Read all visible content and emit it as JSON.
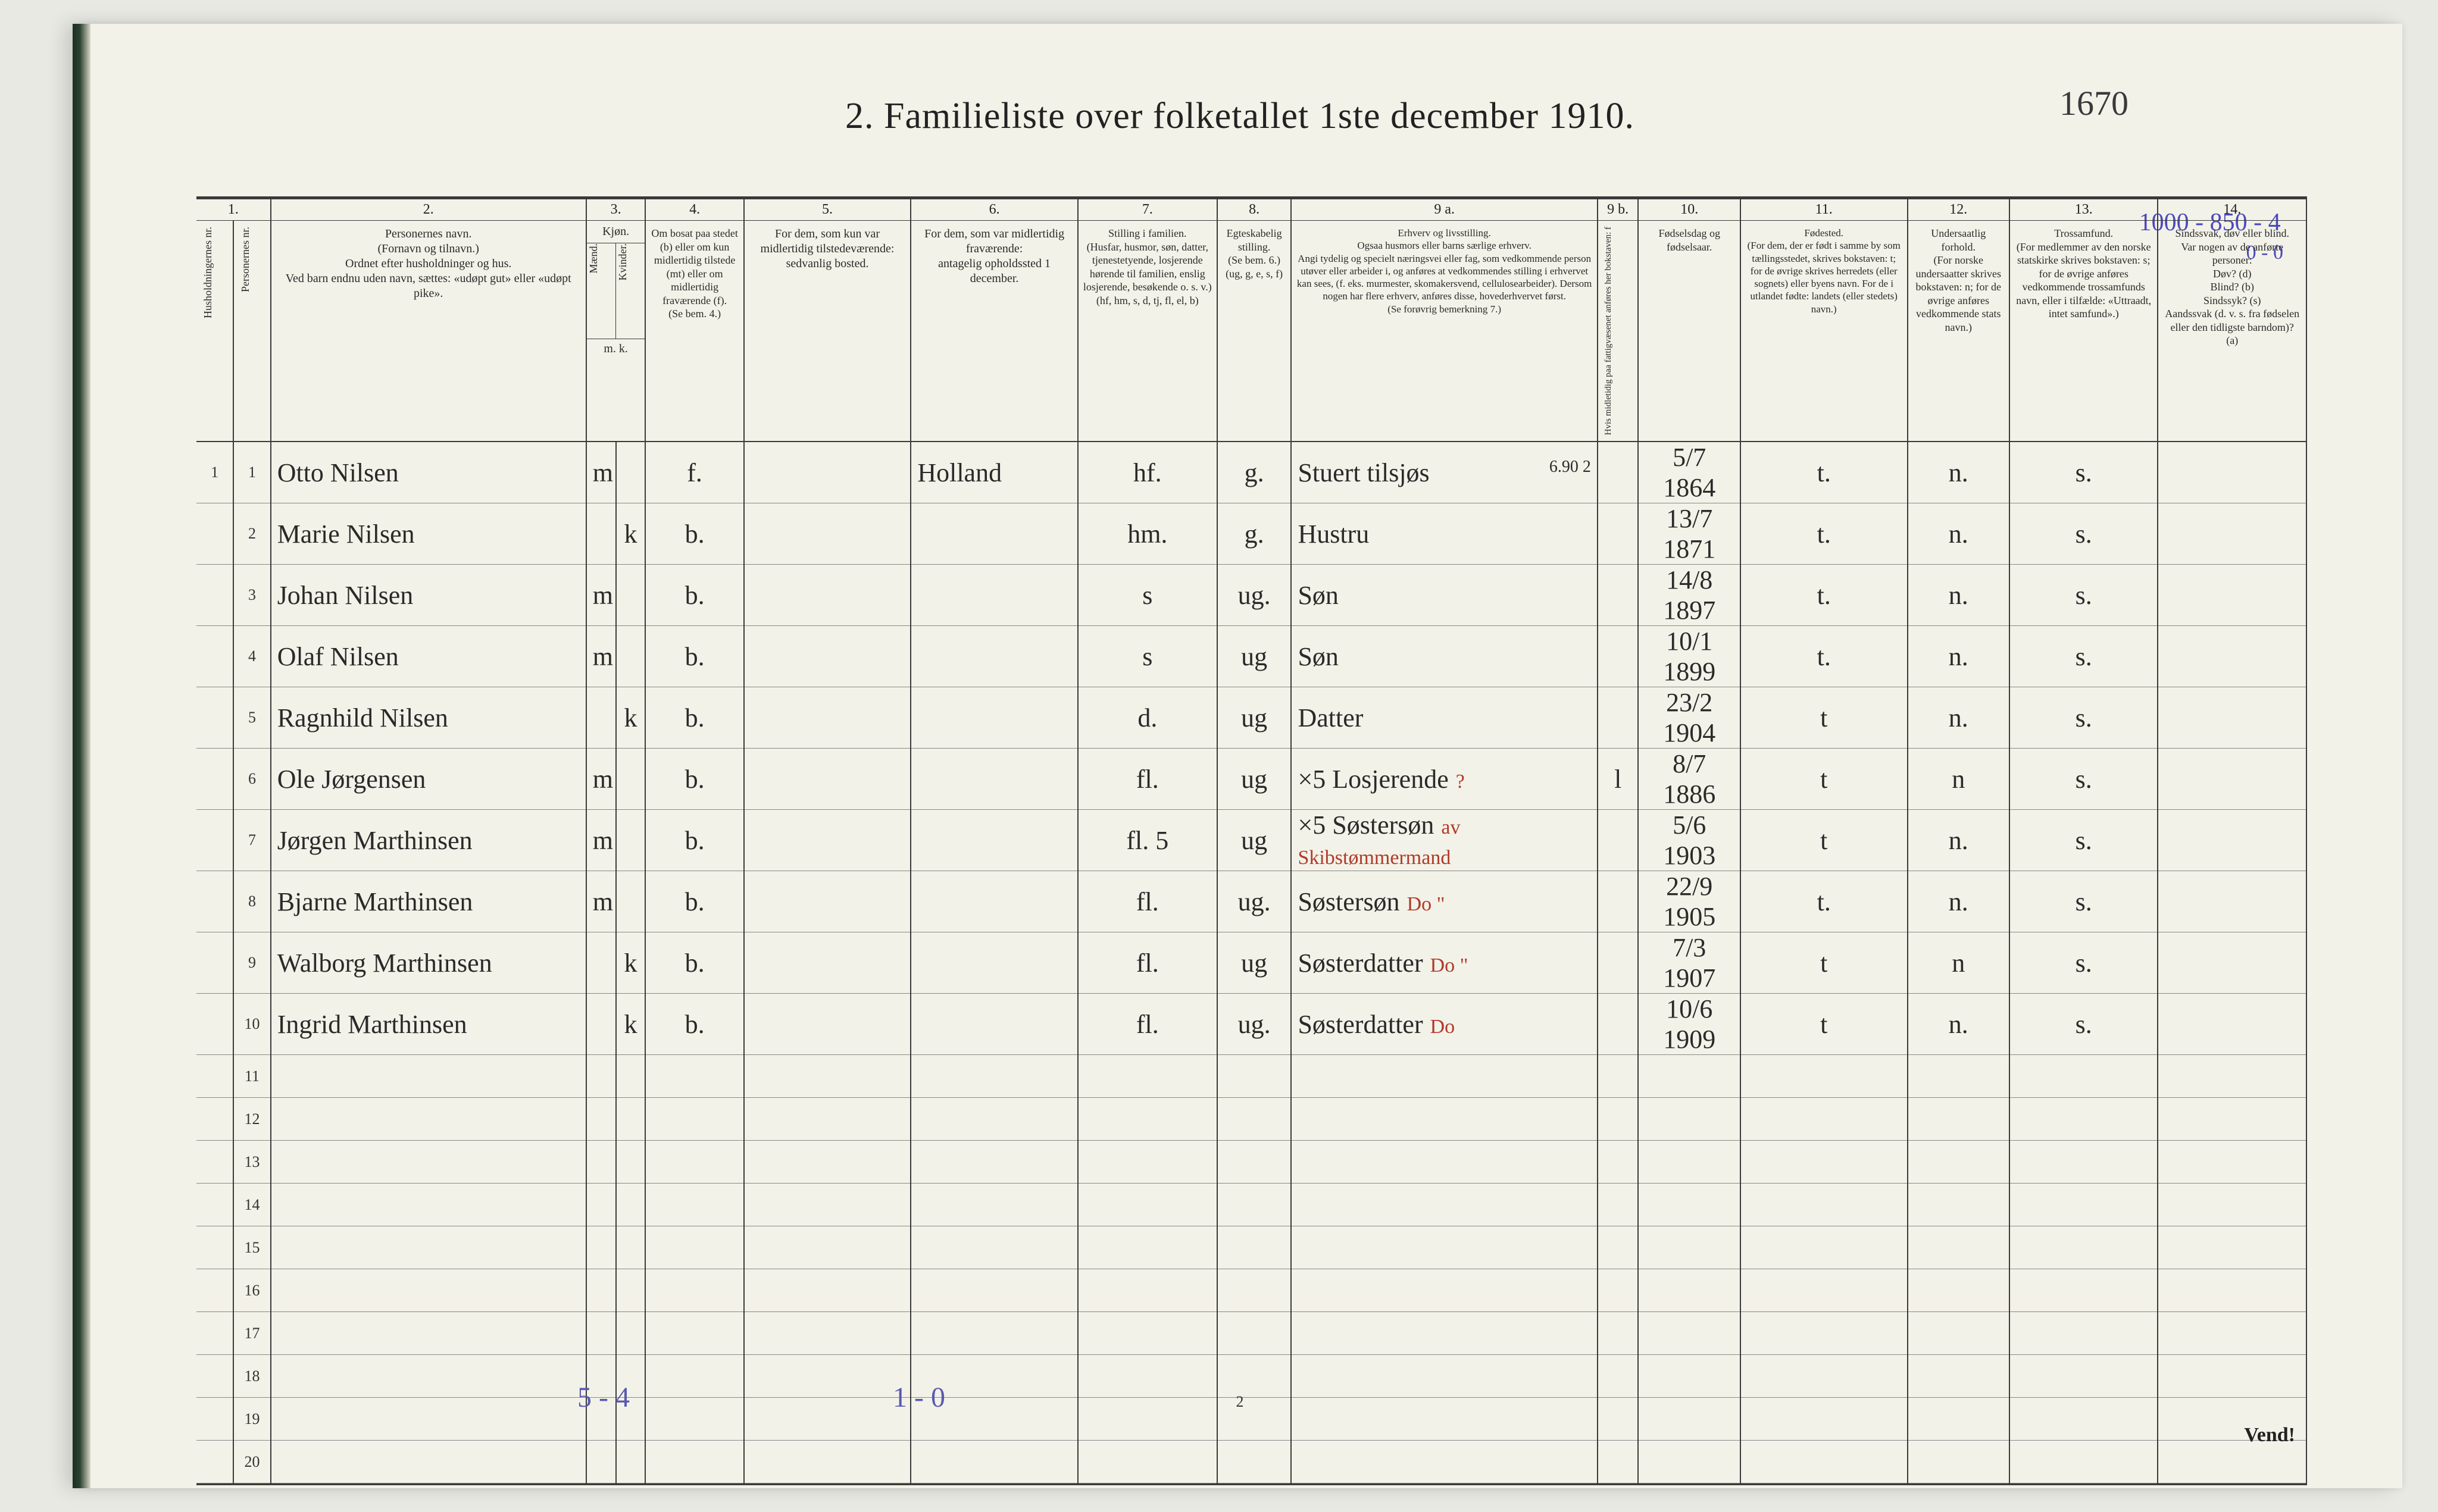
{
  "title": "2.   Familieliste over folketallet 1ste december 1910.",
  "handwritten_page_no": "1670",
  "top_margin_note": "1000 - 850 - 4",
  "top_margin_note2": "0 - 0",
  "footer_blue_left": "5 - 4",
  "footer_blue_mid": "1 - 0",
  "footer_print": "2",
  "vend": "Vend!",
  "col_nums": [
    "1.",
    "2.",
    "3.",
    "4.",
    "5.",
    "6.",
    "7.",
    "8.",
    "9 a.",
    "9 b.",
    "10.",
    "11.",
    "12.",
    "13.",
    "14."
  ],
  "headers": {
    "c1a": "Husholdningernes nr.",
    "c1b": "Personernes nr.",
    "c2": "Personernes navn.\n(Fornavn og tilnavn.)\nOrdnet efter husholdninger og hus.\nVed barn endnu uden navn, sættes: «udøpt gut» eller «udøpt pike».",
    "c3": "Kjøn.",
    "c3a": "Mænd.",
    "c3b": "Kvinder.",
    "c3foot": "m.  k.",
    "c4": "Om bosat paa stedet (b) eller om kun midlertidig tilstede (mt) eller om midlertidig fraværende (f).\n(Se bem. 4.)",
    "c5": "For dem, som kun var midlertidig tilstedeværende:\nsedvanlig bosted.",
    "c6": "For dem, som var midlertidig fraværende:\nantagelig opholdssted 1 december.",
    "c7": "Stilling i familien.\n(Husfar, husmor, søn, datter, tjenestetyende, losjerende hørende til familien, enslig losjerende, besøkende o. s. v.)\n(hf, hm, s, d, tj, fl, el, b)",
    "c8": "Egteskabelig stilling.\n(Se bem. 6.)\n(ug, g, e, s, f)",
    "c9a": "Erhverv og livsstilling.\nOgsaa husmors eller barns særlige erhverv.\nAngi tydelig og specielt næringsvei eller fag, som vedkommende person utøver eller arbeider i, og anføres at vedkommendes stilling i erhvervet kan sees, (f. eks. murmester, skomakersvend, cellulosearbeider). Dersom nogen har flere erhverv, anføres disse, hovederhvervet først.\n(Se forøvrig bemerkning 7.)",
    "c9b": "Hvis midletidig paa fattigvæsenet anføres her bokstaven: f",
    "c10": "Fødselsdag og fødselsaar.",
    "c11": "Fødested.\n(For dem, der er født i samme by som tællingsstedet, skrives bokstaven: t; for de øvrige skrives herredets (eller sognets) eller byens navn. For de i utlandet fødte: landets (eller stedets) navn.)",
    "c12": "Undersaatlig forhold.\n(For norske undersaatter skrives bokstaven: n; for de øvrige anføres vedkommende stats navn.)",
    "c13": "Trossamfund.\n(For medlemmer av den norske statskirke skrives bokstaven: s; for de øvrige anføres vedkommende trossamfunds navn, eller i tilfælde: «Uttraadt, intet samfund».)",
    "c14": "Sindssvak, døv eller blind.\nVar nogen av de anførte personer:\nDøv? (d)\nBlind? (b)\nSindssyk? (s)\nAandssvak (d. v. s. fra fødselen eller den tidligste barndom)? (a)"
  },
  "rows": [
    {
      "hh": "1",
      "pn": "1",
      "name": "Otto Nilsen",
      "sex_m": "m",
      "sex_k": "",
      "res": "f.",
      "c5": "",
      "c6": "Holland",
      "c7": "hf.",
      "c8": "g.",
      "c9": "Stuert tilsjøs",
      "c9note": "6.90 2",
      "c9b": "",
      "c10": "5/7 1864",
      "c11": "t.",
      "c12": "n.",
      "c13": "s.",
      "c14": ""
    },
    {
      "hh": "",
      "pn": "2",
      "name": "Marie Nilsen",
      "sex_m": "",
      "sex_k": "k",
      "res": "b.",
      "c5": "",
      "c6": "",
      "c7": "hm.",
      "c8": "g.",
      "c9": "Hustru",
      "c9b": "",
      "c10": "13/7 1871",
      "c11": "t.",
      "c12": "n.",
      "c13": "s.",
      "c14": ""
    },
    {
      "hh": "",
      "pn": "3",
      "name": "Johan Nilsen",
      "sex_m": "m",
      "sex_k": "",
      "res": "b.",
      "c5": "",
      "c6": "",
      "c7": "s",
      "c8": "ug.",
      "c9": "Søn",
      "c9b": "",
      "c10": "14/8 1897",
      "c11": "t.",
      "c12": "n.",
      "c13": "s.",
      "c14": ""
    },
    {
      "hh": "",
      "pn": "4",
      "name": "Olaf Nilsen",
      "sex_m": "m",
      "sex_k": "",
      "res": "b.",
      "c5": "",
      "c6": "",
      "c7": "s",
      "c8": "ug",
      "c9": "Søn",
      "c9b": "",
      "c10": "10/1 1899",
      "c11": "t.",
      "c12": "n.",
      "c13": "s.",
      "c14": ""
    },
    {
      "hh": "",
      "pn": "5",
      "name": "Ragnhild Nilsen",
      "sex_m": "",
      "sex_k": "k",
      "res": "b.",
      "c5": "",
      "c6": "",
      "c7": "d.",
      "c8": "ug",
      "c9": "Datter",
      "c9b": "",
      "c10": "23/2 1904",
      "c11": "t",
      "c12": "n.",
      "c13": "s.",
      "c14": ""
    },
    {
      "hh": "",
      "pn": "6",
      "name": "Ole Jørgensen",
      "sex_m": "m",
      "sex_k": "",
      "res": "b.",
      "c5": "",
      "c6": "",
      "c7": "fl.",
      "c8": "ug",
      "c9": "×5  Losjerende",
      "c9red": "?",
      "c9b": "l",
      "c10": "8/7 1886",
      "c11": "t",
      "c12": "n",
      "c13": "s.",
      "c14": ""
    },
    {
      "hh": "",
      "pn": "7",
      "name": "Jørgen Marthinsen",
      "sex_m": "m",
      "sex_k": "",
      "res": "b.",
      "c5": "",
      "c6": "",
      "c7": "fl.  5",
      "c8": "ug",
      "c9": "×5  Søstersøn",
      "c9red": "av Skibstømmermand",
      "c9b": "",
      "c10": "5/6 1903",
      "c11": "t",
      "c12": "n.",
      "c13": "s.",
      "c14": ""
    },
    {
      "hh": "",
      "pn": "8",
      "name": "Bjarne Marthinsen",
      "sex_m": "m",
      "sex_k": "",
      "res": "b.",
      "c5": "",
      "c6": "",
      "c7": "fl.",
      "c8": "ug.",
      "c9": "Søstersøn",
      "c9red": "Do \"",
      "c9b": "",
      "c10": "22/9 1905",
      "c11": "t.",
      "c12": "n.",
      "c13": "s.",
      "c14": ""
    },
    {
      "hh": "",
      "pn": "9",
      "name": "Walborg Marthinsen",
      "sex_m": "",
      "sex_k": "k",
      "res": "b.",
      "c5": "",
      "c6": "",
      "c7": "fl.",
      "c8": "ug",
      "c9": "Søsterdatter",
      "c9red": "Do \"",
      "c9b": "",
      "c10": "7/3 1907",
      "c11": "t",
      "c12": "n",
      "c13": "s.",
      "c14": ""
    },
    {
      "hh": "",
      "pn": "10",
      "name": "Ingrid Marthinsen",
      "sex_m": "",
      "sex_k": "k",
      "res": "b.",
      "c5": "",
      "c6": "",
      "c7": "fl.",
      "c8": "ug.",
      "c9": "Søsterdatter",
      "c9red": "Do",
      "c9b": "",
      "c10": "10/6 1909",
      "c11": "t",
      "c12": "n.",
      "c13": "s.",
      "c14": ""
    }
  ],
  "empty_rows": [
    11,
    12,
    13,
    14,
    15,
    16,
    17,
    18,
    19,
    20
  ],
  "colors": {
    "paper": "#f3f2e8",
    "ink": "#2a2a2a",
    "blue_pencil": "#5a5ab0",
    "red_ink": "#b03a2a",
    "rule": "#3a3a3a",
    "binding": "#1a3020"
  },
  "col_widths_pct": [
    2.0,
    2.0,
    17.0,
    1.6,
    1.6,
    5.3,
    9.0,
    9.0,
    7.5,
    4.0,
    16.5,
    2.2,
    5.5,
    9.0,
    5.5,
    8.0,
    8.0
  ]
}
